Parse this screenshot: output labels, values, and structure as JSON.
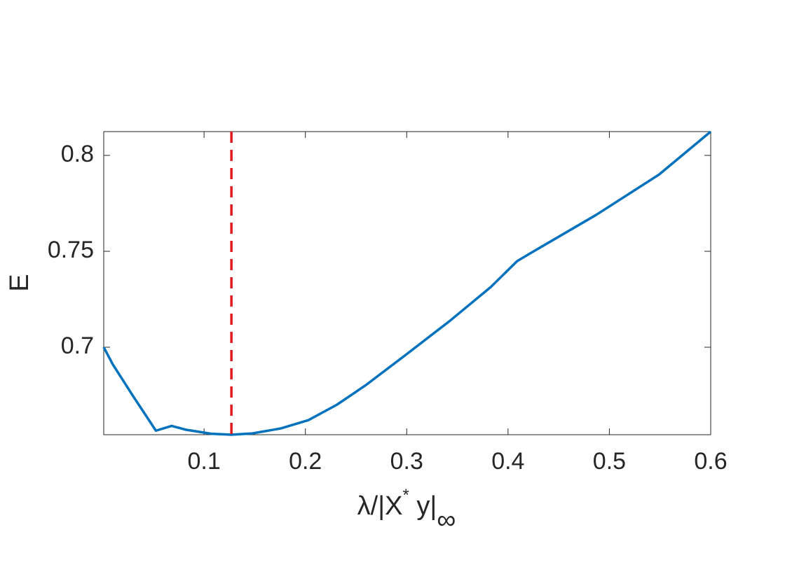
{
  "chart_data": {
    "type": "line",
    "xlabel": {
      "base": "λ/|X",
      "sup": "*",
      "mid": " y|",
      "sub": "∞"
    },
    "ylabel": "E",
    "x": [
      0.001,
      0.01,
      0.03,
      0.0525,
      0.068,
      0.082,
      0.107,
      0.127,
      0.148,
      0.176,
      0.203,
      0.231,
      0.259,
      0.3,
      0.342,
      0.383,
      0.409,
      0.424,
      0.487,
      0.549,
      0.6
    ],
    "series": [
      {
        "color": "#0072bd",
        "values": [
          0.7,
          0.691,
          0.6745,
          0.6565,
          0.659,
          0.657,
          0.6549,
          0.6544,
          0.6551,
          0.6577,
          0.662,
          0.67,
          0.68,
          0.6964,
          0.7135,
          0.7314,
          0.7449,
          0.7496,
          0.769,
          0.79,
          0.8124
        ]
      }
    ],
    "vline": {
      "x": 0.127,
      "color": "#e41a1c"
    },
    "xlim": [
      0.001,
      0.6
    ],
    "ylim": [
      0.6544,
      0.8124
    ],
    "xticks": [
      0.1,
      0.2,
      0.3,
      0.4,
      0.5,
      0.6
    ],
    "yticks": [
      0.7,
      0.75,
      0.8
    ]
  }
}
